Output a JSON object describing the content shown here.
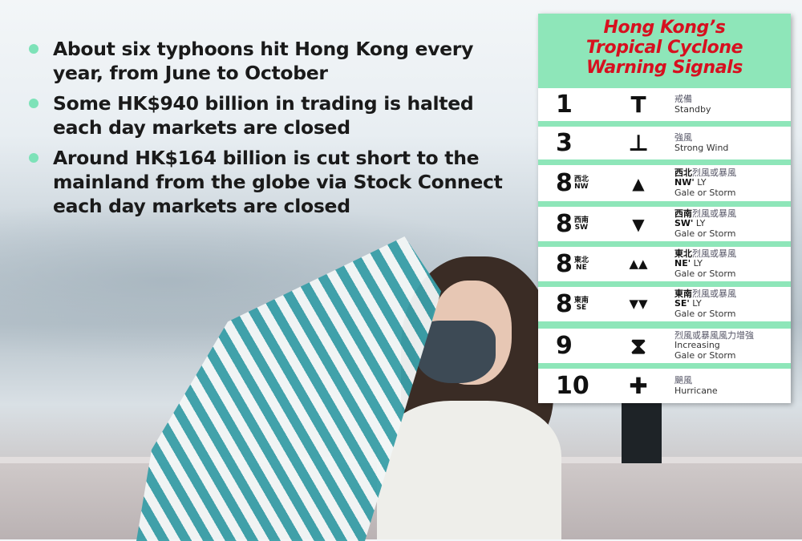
{
  "bullets": [
    "About six typhoons hit Hong Kong every year, from June to October",
    "Some HK$940 billion in trading is halted each day markets are closed",
    "Around HK$164 billion is cut short to the mainland from the globe via Stock Connect each day markets are closed"
  ],
  "card": {
    "title_lines": [
      "Hong Kong’s",
      "Tropical Cyclone",
      "Warning Signals"
    ],
    "signals": [
      {
        "num": "1",
        "dir_zh": "",
        "dir_en": "",
        "symbol": "T",
        "zh_bold": "",
        "zh": "戒備",
        "en_bold": "",
        "en_lines": [
          "Standby"
        ]
      },
      {
        "num": "3",
        "dir_zh": "",
        "dir_en": "",
        "symbol": "⊥",
        "zh_bold": "",
        "zh": "強風",
        "en_bold": "",
        "en_lines": [
          "Strong Wind"
        ]
      },
      {
        "num": "8",
        "dir_zh": "西北",
        "dir_en": "NW",
        "symbol": "▲",
        "zh_bold": "西北",
        "zh": "烈風或暴風",
        "en_bold": "NW'",
        "en_lines": [
          " LY",
          "Gale or Storm"
        ]
      },
      {
        "num": "8",
        "dir_zh": "西南",
        "dir_en": "SW",
        "symbol": "▼",
        "zh_bold": "西南",
        "zh": "烈風或暴風",
        "en_bold": "SW'",
        "en_lines": [
          " LY",
          "Gale or Storm"
        ]
      },
      {
        "num": "8",
        "dir_zh": "東北",
        "dir_en": "NE",
        "symbol": "▲▲",
        "zh_bold": "東北",
        "zh": "烈風或暴風",
        "en_bold": "NE'",
        "en_lines": [
          " LY",
          "Gale or Storm"
        ]
      },
      {
        "num": "8",
        "dir_zh": "東南",
        "dir_en": "SE",
        "symbol": "▼▼",
        "zh_bold": "東南",
        "zh": "烈風或暴風",
        "en_bold": "SE'",
        "en_lines": [
          " LY",
          "Gale or Storm"
        ]
      },
      {
        "num": "9",
        "dir_zh": "",
        "dir_en": "",
        "symbol": "⧗",
        "zh_bold": "",
        "zh": "烈風或暴風風力增強",
        "en_bold": "",
        "en_lines": [
          "Increasing",
          "Gale or Storm"
        ]
      },
      {
        "num": "10",
        "dir_zh": "",
        "dir_en": "",
        "symbol": "✚",
        "zh_bold": "",
        "zh": "颶風",
        "en_bold": "",
        "en_lines": [
          "Hurricane"
        ]
      }
    ]
  },
  "colors": {
    "accent_green": "#8ee6b9",
    "title_red": "#d7101f",
    "bullet_dot": "#7de2b8",
    "umbrella_teal": "#3a9fa8"
  }
}
